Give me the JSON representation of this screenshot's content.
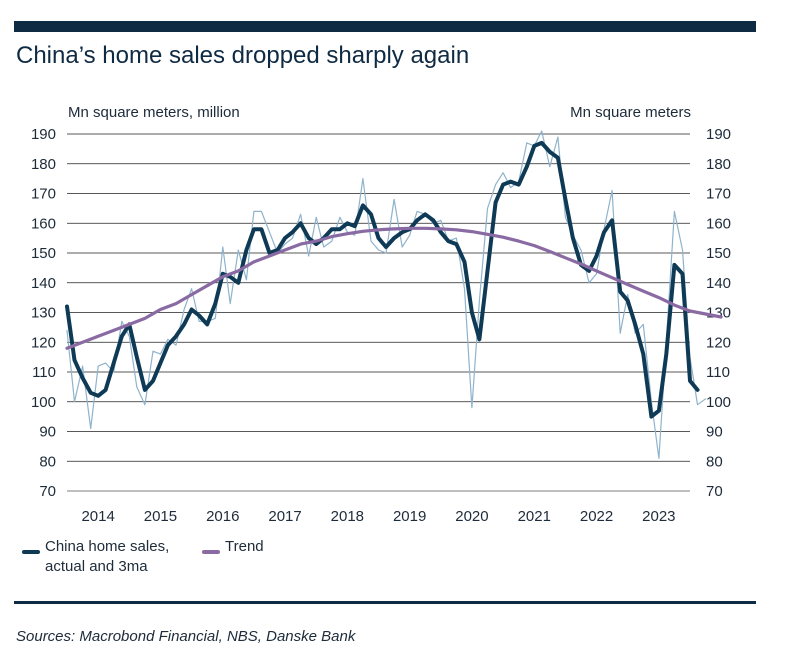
{
  "title": "China’s home sales dropped sharply again",
  "source": "Sources: Macrobond Financial, NBS, Danske Bank",
  "chart_data": {
    "type": "line",
    "ylabel_left": "Mn square meters, million",
    "ylabel_right": "Mn square meters",
    "ylim": [
      70,
      190
    ],
    "yticks": [
      190,
      180,
      170,
      160,
      150,
      140,
      130,
      120,
      110,
      100,
      90,
      80,
      70
    ],
    "xlim": [
      2013.5,
      2023.5
    ],
    "xticks": [
      {
        "label": "2014",
        "x": 2014.0
      },
      {
        "label": "2015",
        "x": 2015.0
      },
      {
        "label": "2016",
        "x": 2016.0
      },
      {
        "label": "2017",
        "x": 2017.0
      },
      {
        "label": "2018",
        "x": 2018.0
      },
      {
        "label": "2019",
        "x": 2019.0
      },
      {
        "label": "2020",
        "x": 2020.0
      },
      {
        "label": "2021",
        "x": 2021.0
      },
      {
        "label": "2022",
        "x": 2022.0
      },
      {
        "label": "2023",
        "x": 2023.0
      }
    ],
    "grid": true,
    "legend": [
      {
        "label_line1": "China home sales,",
        "label_line2": "actual and 3ma",
        "color": "#0f3a56"
      },
      {
        "label_line1": "Trend",
        "color": "#8a6aa3"
      }
    ],
    "series": [
      {
        "name": "China home sales, actual",
        "color": "#8fb3cc",
        "points": [
          [
            2013.5,
            124
          ],
          [
            2013.62,
            100
          ],
          [
            2013.75,
            112
          ],
          [
            2013.88,
            91
          ],
          [
            2014.0,
            112
          ],
          [
            2014.12,
            113
          ],
          [
            2014.25,
            110
          ],
          [
            2014.38,
            127
          ],
          [
            2014.5,
            122
          ],
          [
            2014.62,
            105
          ],
          [
            2014.75,
            99
          ],
          [
            2014.88,
            117
          ],
          [
            2015.0,
            116
          ],
          [
            2015.12,
            121
          ],
          [
            2015.25,
            119
          ],
          [
            2015.38,
            131
          ],
          [
            2015.5,
            138
          ],
          [
            2015.62,
            127
          ],
          [
            2015.75,
            127
          ],
          [
            2015.88,
            128
          ],
          [
            2016.0,
            152
          ],
          [
            2016.12,
            133
          ],
          [
            2016.25,
            151
          ],
          [
            2016.38,
            141
          ],
          [
            2016.5,
            164
          ],
          [
            2016.62,
            164
          ],
          [
            2016.75,
            157
          ],
          [
            2016.88,
            150
          ],
          [
            2017.0,
            153
          ],
          [
            2017.12,
            155
          ],
          [
            2017.25,
            163
          ],
          [
            2017.38,
            149
          ],
          [
            2017.5,
            162
          ],
          [
            2017.62,
            152
          ],
          [
            2017.75,
            154
          ],
          [
            2017.88,
            162
          ],
          [
            2018.0,
            157
          ],
          [
            2018.12,
            156
          ],
          [
            2018.25,
            175
          ],
          [
            2018.38,
            154
          ],
          [
            2018.5,
            151
          ],
          [
            2018.62,
            150
          ],
          [
            2018.75,
            168
          ],
          [
            2018.88,
            152
          ],
          [
            2019.0,
            156
          ],
          [
            2019.12,
            164
          ],
          [
            2019.25,
            163
          ],
          [
            2019.38,
            160
          ],
          [
            2019.5,
            161
          ],
          [
            2019.62,
            154
          ],
          [
            2019.75,
            155
          ],
          [
            2019.88,
            138
          ],
          [
            2020.0,
            98
          ],
          [
            2020.12,
            134
          ],
          [
            2020.25,
            165
          ],
          [
            2020.38,
            173
          ],
          [
            2020.5,
            177
          ],
          [
            2020.62,
            172
          ],
          [
            2020.75,
            174
          ],
          [
            2020.88,
            187
          ],
          [
            2021.0,
            186
          ],
          [
            2021.12,
            191
          ],
          [
            2021.25,
            179
          ],
          [
            2021.38,
            189
          ],
          [
            2021.5,
            162
          ],
          [
            2021.62,
            156
          ],
          [
            2021.75,
            151
          ],
          [
            2021.88,
            140
          ],
          [
            2022.0,
            143
          ],
          [
            2022.12,
            158
          ],
          [
            2022.25,
            171
          ],
          [
            2022.38,
            123
          ],
          [
            2022.5,
            136
          ],
          [
            2022.62,
            123
          ],
          [
            2022.75,
            126
          ],
          [
            2022.88,
            100
          ],
          [
            2023.0,
            81
          ],
          [
            2023.12,
            120
          ],
          [
            2023.25,
            164
          ],
          [
            2023.38,
            151
          ],
          [
            2023.5,
            115
          ],
          [
            2023.62,
            99
          ],
          [
            2023.75,
            101
          ]
        ]
      },
      {
        "name": "China home sales, 3ma",
        "color": "#0f3a56",
        "points": [
          [
            2013.5,
            132
          ],
          [
            2013.62,
            114
          ],
          [
            2013.75,
            108
          ],
          [
            2013.88,
            103
          ],
          [
            2014.0,
            102
          ],
          [
            2014.12,
            104
          ],
          [
            2014.25,
            113
          ],
          [
            2014.38,
            122
          ],
          [
            2014.5,
            126
          ],
          [
            2014.62,
            115
          ],
          [
            2014.75,
            104
          ],
          [
            2014.88,
            107
          ],
          [
            2015.0,
            113
          ],
          [
            2015.12,
            119
          ],
          [
            2015.25,
            122
          ],
          [
            2015.38,
            126
          ],
          [
            2015.5,
            131
          ],
          [
            2015.62,
            129
          ],
          [
            2015.75,
            126
          ],
          [
            2015.88,
            133
          ],
          [
            2016.0,
            143
          ],
          [
            2016.12,
            142
          ],
          [
            2016.25,
            140
          ],
          [
            2016.38,
            151
          ],
          [
            2016.5,
            158
          ],
          [
            2016.62,
            158
          ],
          [
            2016.75,
            150
          ],
          [
            2016.88,
            151
          ],
          [
            2017.0,
            155
          ],
          [
            2017.12,
            157
          ],
          [
            2017.25,
            160
          ],
          [
            2017.38,
            155
          ],
          [
            2017.5,
            153
          ],
          [
            2017.62,
            155
          ],
          [
            2017.75,
            158
          ],
          [
            2017.88,
            158
          ],
          [
            2018.0,
            160
          ],
          [
            2018.12,
            159
          ],
          [
            2018.25,
            166
          ],
          [
            2018.38,
            163
          ],
          [
            2018.5,
            155
          ],
          [
            2018.62,
            152
          ],
          [
            2018.75,
            155
          ],
          [
            2018.88,
            157
          ],
          [
            2019.0,
            158
          ],
          [
            2019.12,
            161
          ],
          [
            2019.25,
            163
          ],
          [
            2019.38,
            161
          ],
          [
            2019.5,
            157
          ],
          [
            2019.62,
            154
          ],
          [
            2019.75,
            153
          ],
          [
            2019.88,
            147
          ],
          [
            2020.0,
            130
          ],
          [
            2020.12,
            121
          ],
          [
            2020.25,
            144
          ],
          [
            2020.38,
            167
          ],
          [
            2020.5,
            173
          ],
          [
            2020.62,
            174
          ],
          [
            2020.75,
            173
          ],
          [
            2020.88,
            179
          ],
          [
            2021.0,
            186
          ],
          [
            2021.12,
            187
          ],
          [
            2021.25,
            184
          ],
          [
            2021.38,
            182
          ],
          [
            2021.5,
            168
          ],
          [
            2021.62,
            155
          ],
          [
            2021.75,
            146
          ],
          [
            2021.88,
            144
          ],
          [
            2022.0,
            149
          ],
          [
            2022.12,
            157
          ],
          [
            2022.25,
            161
          ],
          [
            2022.38,
            137
          ],
          [
            2022.5,
            134
          ],
          [
            2022.62,
            126
          ],
          [
            2022.75,
            116
          ],
          [
            2022.88,
            95
          ],
          [
            2023.0,
            97
          ],
          [
            2023.12,
            116
          ],
          [
            2023.25,
            146
          ],
          [
            2023.38,
            143
          ],
          [
            2023.5,
            107
          ],
          [
            2023.62,
            104
          ]
        ]
      },
      {
        "name": "Trend",
        "color": "#8a6aa3",
        "points": [
          [
            2013.5,
            118
          ],
          [
            2013.75,
            120
          ],
          [
            2014.0,
            122
          ],
          [
            2014.25,
            124
          ],
          [
            2014.5,
            126
          ],
          [
            2014.75,
            128
          ],
          [
            2015.0,
            131
          ],
          [
            2015.25,
            133
          ],
          [
            2015.5,
            136
          ],
          [
            2015.75,
            139
          ],
          [
            2016.0,
            142
          ],
          [
            2016.25,
            144
          ],
          [
            2016.5,
            147
          ],
          [
            2016.75,
            149
          ],
          [
            2017.0,
            151
          ],
          [
            2017.25,
            153
          ],
          [
            2017.5,
            154
          ],
          [
            2017.75,
            155.5
          ],
          [
            2018.0,
            156.5
          ],
          [
            2018.25,
            157.3
          ],
          [
            2018.5,
            157.8
          ],
          [
            2018.75,
            158.1
          ],
          [
            2019.0,
            158.3
          ],
          [
            2019.25,
            158.3
          ],
          [
            2019.5,
            158.1
          ],
          [
            2019.75,
            157.8
          ],
          [
            2020.0,
            157.2
          ],
          [
            2020.25,
            156.3
          ],
          [
            2020.5,
            155.3
          ],
          [
            2020.75,
            154
          ],
          [
            2021.0,
            152.5
          ],
          [
            2021.25,
            150.5
          ],
          [
            2021.5,
            148.4
          ],
          [
            2021.75,
            146.3
          ],
          [
            2022.0,
            144
          ],
          [
            2022.25,
            141.7
          ],
          [
            2022.5,
            139.4
          ],
          [
            2022.75,
            137.2
          ],
          [
            2023.0,
            135
          ],
          [
            2023.25,
            132.5
          ],
          [
            2023.5,
            130.5
          ],
          [
            2023.75,
            129.5
          ],
          [
            2024.0,
            128.5
          ]
        ]
      }
    ]
  }
}
